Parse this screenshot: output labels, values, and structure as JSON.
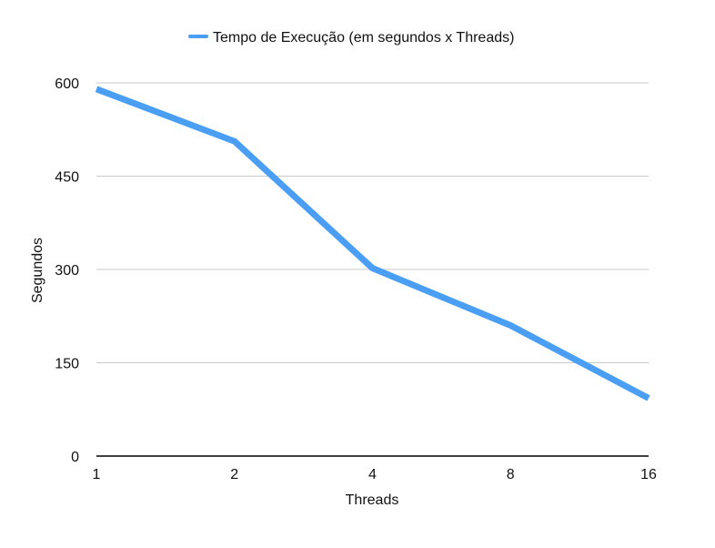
{
  "chart_data": {
    "type": "line",
    "categories": [
      "1",
      "2",
      "4",
      "8",
      "16"
    ],
    "series": [
      {
        "name": "Tempo de Execução (em segundos x Threads)",
        "values": [
          590,
          506,
          302,
          210,
          93
        ],
        "color": "#4a9ff5"
      }
    ],
    "xlabel": "Threads",
    "ylabel": "Segundos",
    "ylim": [
      0,
      600
    ],
    "yticks": [
      "0",
      "150",
      "300",
      "450",
      "600"
    ],
    "grid": true,
    "legend_position": "top-center"
  }
}
